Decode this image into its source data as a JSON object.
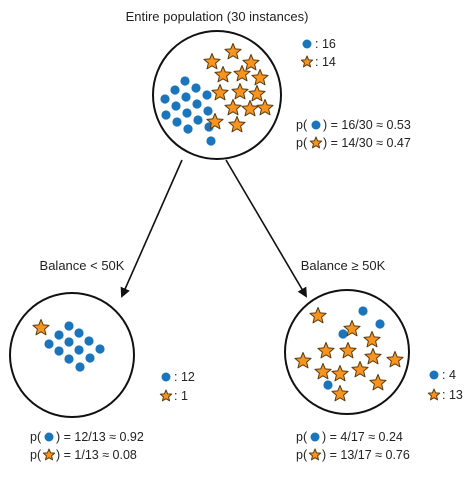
{
  "root": {
    "title": "Entire population (30 instances)",
    "legend": {
      "circle_count": ": 16",
      "star_count": ": 14"
    },
    "prob_circle": {
      "prefix": "p(",
      "suffix": ") = 16/30 ≈ 0.53"
    },
    "prob_star": {
      "prefix": "p(",
      "suffix": ") = 14/30 ≈ 0.47"
    }
  },
  "left": {
    "split_label": "Balance < 50K",
    "legend": {
      "circle_count": ": 12",
      "star_count": ": 1"
    },
    "prob_circle": {
      "prefix": "p(",
      "suffix": ") = 12/13 ≈ 0.92"
    },
    "prob_star": {
      "prefix": "p(",
      "suffix": ") = 1/13 ≈ 0.08"
    }
  },
  "right": {
    "split_label": "Balance ≥ 50K",
    "legend": {
      "circle_count": ": 4",
      "star_count": ": 13"
    },
    "prob_circle": {
      "prefix": "p(",
      "suffix": ") = 4/17 ≈ 0.24"
    },
    "prob_star": {
      "prefix": "p(",
      "suffix": ") = 13/17 ≈ 0.76"
    }
  },
  "colors": {
    "circle": "#1a75bc",
    "star": "#f7941d",
    "star_stroke": "#5a3a10",
    "edge": "#111111"
  },
  "icons": {
    "circle": "blue-circle-icon",
    "star": "orange-star-icon"
  }
}
